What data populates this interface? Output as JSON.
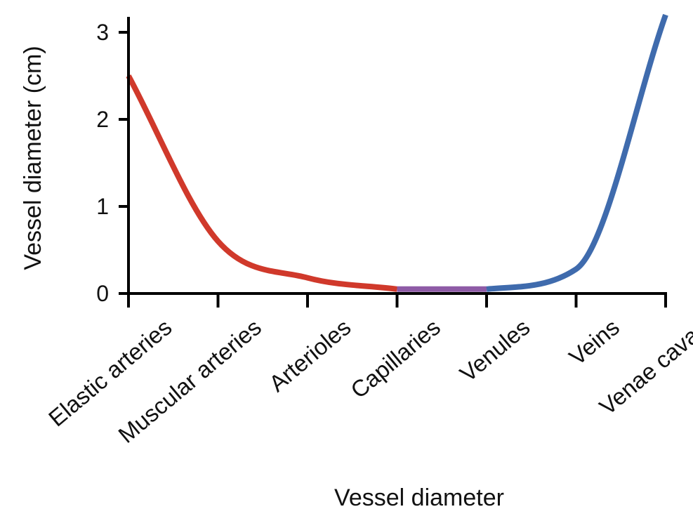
{
  "chart_data": {
    "type": "line",
    "title": "",
    "xlabel": "Vessel diameter",
    "ylabel": "Vessel diameter (cm)",
    "categories": [
      "Elastic arteries",
      "Muscular arteries",
      "Arterioles",
      "Capillaries",
      "Venules",
      "Veins",
      "Venae cavae"
    ],
    "ylim": [
      0,
      3
    ],
    "yticks": [
      0,
      1,
      2,
      3
    ],
    "grid": false,
    "segments": [
      {
        "color": "#d0392b",
        "points": [
          [
            "Elastic arteries",
            2.5
          ],
          [
            "Muscular arteries",
            0.6
          ],
          [
            "Arterioles",
            0.18
          ],
          [
            "Capillaries",
            0.05
          ]
        ]
      },
      {
        "color": "#8e5ba6",
        "points": [
          [
            "Capillaries",
            0.05
          ],
          [
            "Venules",
            0.05
          ]
        ]
      },
      {
        "color": "#3f6bad",
        "points": [
          [
            "Venules",
            0.05
          ],
          [
            "Veins",
            0.28
          ],
          [
            "Venae cavae",
            3.2
          ]
        ]
      }
    ]
  }
}
